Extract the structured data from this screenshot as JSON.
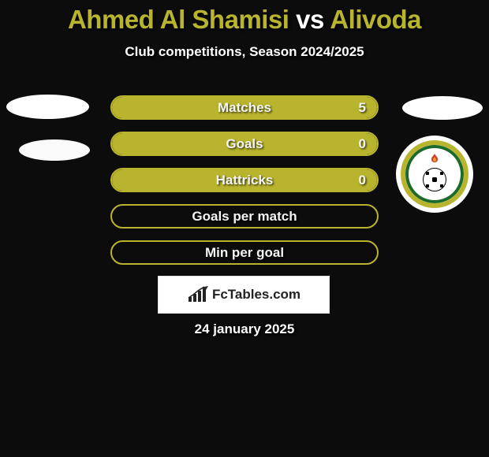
{
  "header": {
    "title_prefix": "Ahmed Al Shamisi ",
    "title_vs": "vs",
    "title_suffix": " Alivoda",
    "title_color_main": "#b9b42e",
    "title_color_vs": "#ffffff",
    "subtitle": "Club competitions, Season 2024/2025"
  },
  "colors": {
    "accent": "#b9b42e",
    "bar_border": "#b9b42e",
    "bar_fill": "#b9b42e",
    "badge_ring_outer": "#b9b42e",
    "badge_green": "#1d6b2c",
    "background": "#0c0c0c"
  },
  "bars": [
    {
      "label": "Matches",
      "right": "5",
      "fill_pct": 100
    },
    {
      "label": "Goals",
      "right": "0",
      "fill_pct": 100
    },
    {
      "label": "Hattricks",
      "right": "0",
      "fill_pct": 100
    },
    {
      "label": "Goals per match",
      "fill_pct": 0
    },
    {
      "label": "Min per goal",
      "fill_pct": 0
    }
  ],
  "brand": {
    "text": "FcTables.com"
  },
  "date": "24 january 2025"
}
